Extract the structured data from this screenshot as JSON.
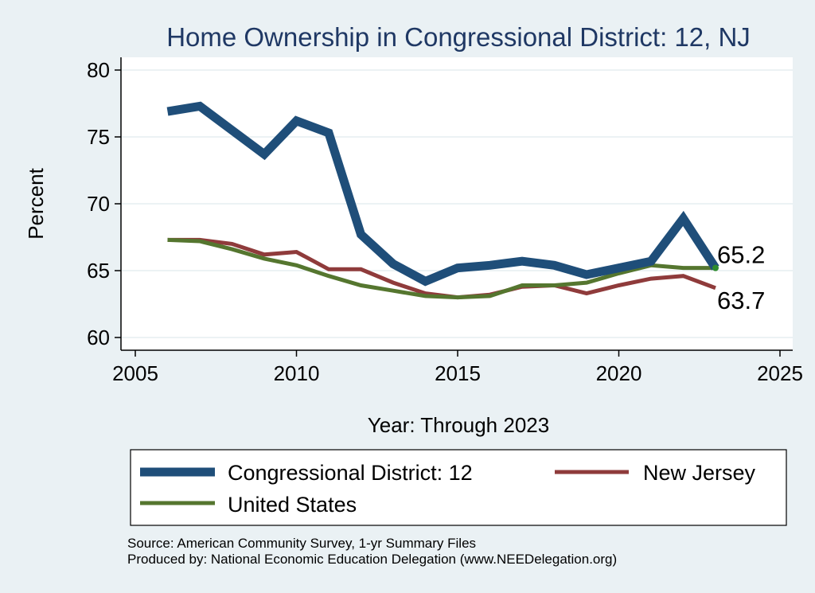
{
  "chart_data": {
    "type": "line",
    "title": "Home Ownership in Congressional District:  12, NJ",
    "xlabel": "Year: Through 2023",
    "ylabel": "Percent",
    "xlim": [
      2005,
      2025
    ],
    "ylim": [
      60,
      80
    ],
    "x_ticks": [
      2005,
      2010,
      2015,
      2020,
      2025
    ],
    "y_ticks": [
      60,
      65,
      70,
      75,
      80
    ],
    "grid": "horizontal",
    "legend_position": "bottom",
    "x": [
      2006,
      2007,
      2008,
      2009,
      2010,
      2011,
      2012,
      2013,
      2014,
      2015,
      2016,
      2017,
      2018,
      2019,
      2020,
      2021,
      2022,
      2023
    ],
    "series": [
      {
        "name": "Congressional District:  12",
        "color": "#1f4e79",
        "values": [
          76.9,
          77.3,
          75.5,
          73.7,
          76.2,
          75.3,
          67.7,
          65.5,
          64.2,
          65.2,
          65.4,
          65.7,
          65.4,
          64.7,
          65.2,
          65.7,
          68.9,
          65.2
        ]
      },
      {
        "name": "New Jersey",
        "color": "#8f3b3b",
        "values": [
          67.3,
          67.3,
          67.0,
          66.2,
          66.4,
          65.1,
          65.1,
          64.1,
          63.3,
          63.0,
          63.2,
          63.8,
          63.9,
          63.3,
          63.9,
          64.4,
          64.6,
          63.7
        ]
      },
      {
        "name": "United States",
        "color": "#55762f",
        "values": [
          67.3,
          67.2,
          66.6,
          65.9,
          65.4,
          64.6,
          63.9,
          63.5,
          63.1,
          63.0,
          63.1,
          63.9,
          63.9,
          64.1,
          64.8,
          65.4,
          65.2,
          65.2
        ]
      }
    ],
    "end_labels": [
      {
        "text": "65.2",
        "series_index": 0
      },
      {
        "text": "63.7",
        "series_index": 1
      }
    ]
  },
  "source_lines": [
    "Source: American Community Survey, 1-yr Summary Files",
    "Produced by: National Economic Education Delegation (www.NEEDelegation.org)"
  ],
  "colors": {
    "background": "#eaf1f4",
    "plot_background": "#ffffff",
    "title": "#1f3864",
    "grid": "#e6edf0"
  }
}
